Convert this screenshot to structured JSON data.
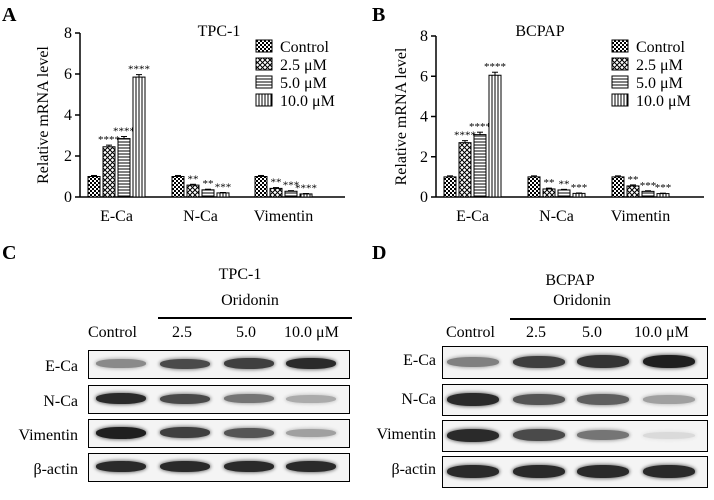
{
  "panels": {
    "A": {
      "letter": "A"
    },
    "B": {
      "letter": "B"
    },
    "C": {
      "letter": "C"
    },
    "D": {
      "letter": "D"
    }
  },
  "chart_data": [
    {
      "type": "bar",
      "title": "TPC-1",
      "ylabel": "Relative mRNA level",
      "xlabel": "",
      "ylim": [
        0,
        8
      ],
      "yticks": [
        "0",
        "2",
        "4",
        "6",
        "8"
      ],
      "categories": [
        "E-Ca",
        "N-Ca",
        "Vimentin"
      ],
      "legend_position": "top-right",
      "series": [
        {
          "name": "Control",
          "pattern": "checker",
          "values": [
            1.0,
            1.0,
            1.0
          ],
          "errors": [
            0.05,
            0.05,
            0.05
          ],
          "significance": [
            "",
            "",
            ""
          ]
        },
        {
          "name": "2.5 μM",
          "pattern": "diamond",
          "values": [
            2.45,
            0.58,
            0.42
          ],
          "errors": [
            0.08,
            0.04,
            0.04
          ],
          "significance": [
            "****",
            "**",
            "**"
          ]
        },
        {
          "name": "5.0 μM",
          "pattern": "hlines",
          "values": [
            2.85,
            0.35,
            0.28
          ],
          "errors": [
            0.1,
            0.03,
            0.03
          ],
          "significance": [
            "****",
            "**",
            "***"
          ]
        },
        {
          "name": "10.0 μM",
          "pattern": "vlines",
          "values": [
            5.85,
            0.2,
            0.15
          ],
          "errors": [
            0.12,
            0.02,
            0.02
          ],
          "significance": [
            "****",
            "***",
            "****"
          ]
        }
      ]
    },
    {
      "type": "bar",
      "title": "BCPAP",
      "ylabel": "Relative mRNA level",
      "xlabel": "",
      "ylim": [
        0,
        8
      ],
      "yticks": [
        "0",
        "2",
        "4",
        "6",
        "8"
      ],
      "categories": [
        "E-Ca",
        "N-Ca",
        "Vimentin"
      ],
      "legend_position": "top-right",
      "series": [
        {
          "name": "Control",
          "pattern": "checker",
          "values": [
            1.0,
            1.0,
            1.0
          ],
          "errors": [
            0.05,
            0.05,
            0.05
          ],
          "significance": [
            "",
            "",
            ""
          ]
        },
        {
          "name": "2.5 μM",
          "pattern": "diamond",
          "values": [
            2.7,
            0.4,
            0.55
          ],
          "errors": [
            0.1,
            0.04,
            0.05
          ],
          "significance": [
            "****",
            "**",
            "**"
          ]
        },
        {
          "name": "5.0 μM",
          "pattern": "hlines",
          "values": [
            3.1,
            0.35,
            0.28
          ],
          "errors": [
            0.12,
            0.03,
            0.03
          ],
          "significance": [
            "****",
            "**",
            "***"
          ]
        },
        {
          "name": "10.0 μM",
          "pattern": "vlines",
          "values": [
            6.05,
            0.18,
            0.17
          ],
          "errors": [
            0.15,
            0.02,
            0.02
          ],
          "significance": [
            "****",
            "***",
            "***"
          ]
        }
      ]
    }
  ],
  "blots": [
    {
      "title": "TPC-1",
      "treatment_label": "Oridonin",
      "lanes": [
        "Control",
        "2.5",
        "5.0",
        "10.0 μM"
      ],
      "rows": [
        {
          "label": "E-Ca",
          "intensity": [
            0.45,
            0.75,
            0.8,
            0.9
          ]
        },
        {
          "label": "N-Ca",
          "intensity": [
            0.9,
            0.75,
            0.55,
            0.3
          ]
        },
        {
          "label": "Vimentin",
          "intensity": [
            0.95,
            0.8,
            0.7,
            0.35
          ]
        },
        {
          "label": "β-actin",
          "intensity": [
            0.9,
            0.9,
            0.9,
            0.9
          ]
        }
      ]
    },
    {
      "title": "BCPAP",
      "treatment_label": "Oridonin",
      "lanes": [
        "Control",
        "2.5",
        "5.0",
        "10.0 μM"
      ],
      "rows": [
        {
          "label": "E-Ca",
          "intensity": [
            0.5,
            0.8,
            0.85,
            0.95
          ]
        },
        {
          "label": "N-Ca",
          "intensity": [
            0.9,
            0.7,
            0.65,
            0.35
          ]
        },
        {
          "label": "Vimentin",
          "intensity": [
            0.9,
            0.75,
            0.55,
            0.08
          ]
        },
        {
          "label": "β-actin",
          "intensity": [
            0.9,
            0.9,
            0.9,
            0.9
          ]
        }
      ]
    }
  ]
}
